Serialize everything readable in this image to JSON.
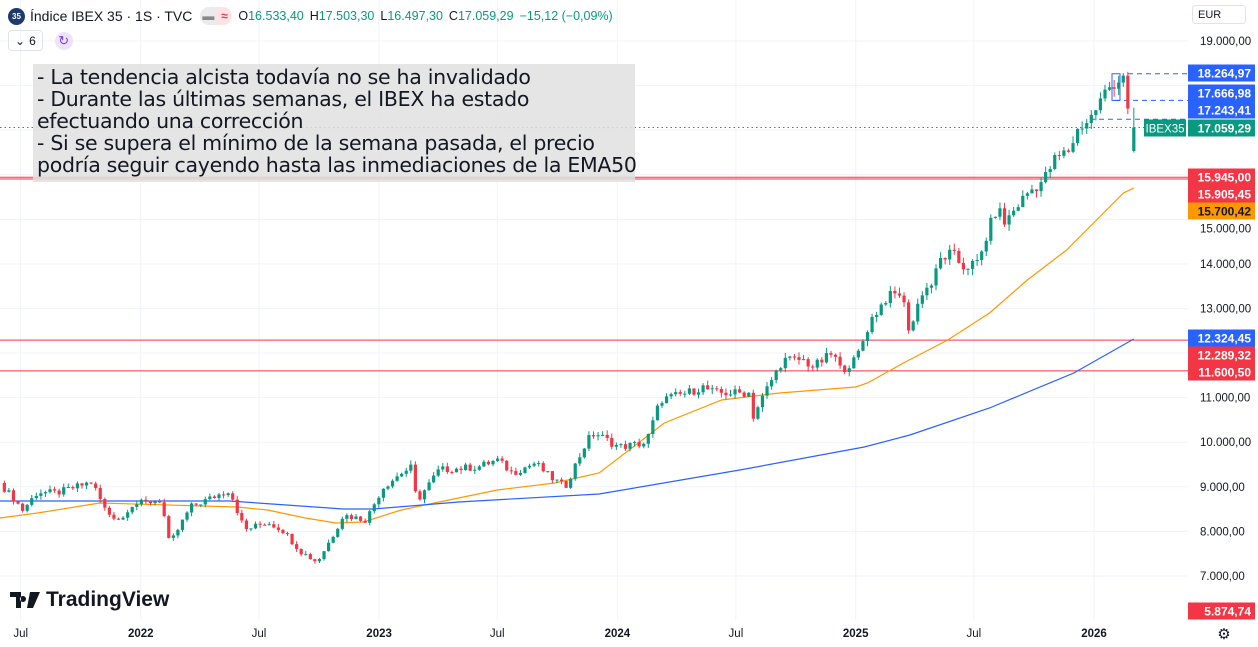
{
  "header": {
    "symbol_badge": "35",
    "title": "Índice IBEX 35 · 1S · TVC",
    "open_label": "O",
    "open": "16.533,40",
    "high_label": "H",
    "high": "17.503,30",
    "low_label": "L",
    "low": "16.497,30",
    "close_label": "C",
    "close": "17.059,29",
    "change": "−15,12 (−0,09%)",
    "indicators_count": "6",
    "currency": "EUR"
  },
  "annotation": {
    "lines": [
      "- La tendencia alcista todavía no se ha invalidado",
      "- Durante las últimas semanas, el IBEX ha estado",
      "efectuando una corrección",
      "- Si se supera el mínimo de la semana pasada, el precio",
      "podría seguir cayendo hasta las inmediaciones de la EMA50"
    ]
  },
  "branding": {
    "logo_text": "TradingView"
  },
  "colors": {
    "up": "#089981",
    "down": "#f23645",
    "ema50": "#ff9800",
    "ema200": "#2962ff",
    "level_line": "#f23645",
    "tag_blue": "#2962ff"
  },
  "chart_data": {
    "type": "candlestick",
    "interval": "1W",
    "ylim": [
      5600,
      19400
    ],
    "y_ticks": [
      "19.000,00",
      "15.000,00",
      "14.000,00",
      "13.000,00",
      "11.000,00",
      "10.000,00",
      "9.000,00",
      "8.000,00",
      "7.000,00"
    ],
    "y_tick_values": [
      19000,
      15000,
      14000,
      13000,
      11000,
      10000,
      9000,
      8000,
      7000
    ],
    "x_ticks": [
      {
        "label": "Jul",
        "date": "2021-07-01",
        "bold": false
      },
      {
        "label": "2022",
        "date": "2022-01-01",
        "bold": true
      },
      {
        "label": "Jul",
        "date": "2022-07-01",
        "bold": false
      },
      {
        "label": "2023",
        "date": "2023-01-01",
        "bold": true
      },
      {
        "label": "Jul",
        "date": "2023-07-01",
        "bold": false
      },
      {
        "label": "2024",
        "date": "2024-01-01",
        "bold": true
      },
      {
        "label": "Jul",
        "date": "2024-07-01",
        "bold": false
      },
      {
        "label": "2025",
        "date": "2025-01-01",
        "bold": true
      },
      {
        "label": "Jul",
        "date": "2025-07-01",
        "bold": false
      },
      {
        "label": "2026",
        "date": "2026-01-01",
        "bold": true
      }
    ],
    "grid": true,
    "close_path": [
      [
        "2021-05-30",
        9086
      ],
      [
        "2021-06-22",
        8705
      ],
      [
        "2021-07-04",
        8480
      ],
      [
        "2021-07-27",
        8884
      ],
      [
        "2021-08-25",
        8862
      ],
      [
        "2021-10-18",
        9108
      ],
      [
        "2021-11-10",
        8413
      ],
      [
        "2021-12-03",
        8256
      ],
      [
        "2021-12-15",
        8592
      ],
      [
        "2022-02-01",
        8705
      ],
      [
        "2022-02-14",
        7695
      ],
      [
        "2022-03-18",
        8548
      ],
      [
        "2022-05-17",
        8929
      ],
      [
        "2022-06-09",
        8032
      ],
      [
        "2022-07-14",
        8210
      ],
      [
        "2022-08-06",
        8032
      ],
      [
        "2022-09-04",
        7538
      ],
      [
        "2022-09-28",
        7314
      ],
      [
        "2022-10-21",
        7875
      ],
      [
        "2022-11-07",
        8368
      ],
      [
        "2022-12-12",
        8256
      ],
      [
        "2023-01-06",
        8974
      ],
      [
        "2023-02-04",
        9310
      ],
      [
        "2023-02-21",
        9445
      ],
      [
        "2023-02-27",
        8660
      ],
      [
        "2023-04-03",
        9378
      ],
      [
        "2023-06-01",
        9445
      ],
      [
        "2023-07-01",
        9602
      ],
      [
        "2023-07-24",
        9310
      ],
      [
        "2023-08-28",
        9535
      ],
      [
        "2023-09-20",
        9220
      ],
      [
        "2023-10-13",
        8996
      ],
      [
        "2023-10-25",
        9378
      ],
      [
        "2023-11-16",
        10050
      ],
      [
        "2023-11-28",
        10207
      ],
      [
        "2024-01-03",
        9893
      ],
      [
        "2024-02-14",
        9983
      ],
      [
        "2024-03-07",
        10948
      ],
      [
        "2024-04-17",
        11105
      ],
      [
        "2024-05-11",
        11239
      ],
      [
        "2024-05-29",
        11105
      ],
      [
        "2024-07-21",
        11105
      ],
      [
        "2024-07-27",
        10566
      ],
      [
        "2024-08-19",
        11239
      ],
      [
        "2024-09-11",
        11845
      ],
      [
        "2024-10-12",
        11845
      ],
      [
        "2024-10-28",
        11688
      ],
      [
        "2024-11-27",
        12002
      ],
      [
        "2024-12-09",
        11621
      ],
      [
        "2025-01-01",
        11845
      ],
      [
        "2025-01-24",
        12742
      ],
      [
        "2025-02-18",
        13258
      ],
      [
        "2025-03-12",
        13348
      ],
      [
        "2025-03-25",
        12450
      ],
      [
        "2025-04-11",
        13348
      ],
      [
        "2025-04-29",
        13572
      ],
      [
        "2025-05-10",
        14088
      ],
      [
        "2025-05-28",
        14245
      ],
      [
        "2025-06-14",
        13931
      ],
      [
        "2025-07-08",
        14020
      ],
      [
        "2025-07-25",
        14828
      ],
      [
        "2025-08-06",
        15277
      ],
      [
        "2025-08-17",
        14918
      ],
      [
        "2025-09-04",
        15277
      ],
      [
        "2025-09-21",
        15591
      ],
      [
        "2025-10-16",
        15882
      ],
      [
        "2025-11-01",
        16331
      ],
      [
        "2025-11-24",
        16555
      ],
      [
        "2025-12-09",
        17071
      ],
      [
        "2025-12-25",
        17228
      ],
      [
        "2026-01-09",
        17609
      ],
      [
        "2026-01-20",
        17901
      ],
      [
        "2026-02-01",
        18058
      ],
      [
        "2026-02-09",
        18125
      ],
      [
        "2026-02-16",
        18305
      ],
      [
        "2026-02-24",
        17071
      ]
    ],
    "last_candle": {
      "date": "2026-03-03",
      "open": 16533.4,
      "high": 17503.3,
      "low": 16497.3,
      "close": 17059.29
    },
    "series": [
      {
        "name": "EMA50",
        "color": "#ff9800",
        "points": [
          [
            "2021-05-30",
            8301
          ],
          [
            "2021-07-27",
            8413
          ],
          [
            "2021-10-30",
            8637
          ],
          [
            "2022-05-28",
            8548
          ],
          [
            "2022-07-14",
            8480
          ],
          [
            "2022-09-10",
            8301
          ],
          [
            "2022-10-27",
            8189
          ],
          [
            "2022-12-08",
            8211
          ],
          [
            "2023-02-04",
            8480
          ],
          [
            "2023-04-03",
            8660
          ],
          [
            "2023-07-01",
            8929
          ],
          [
            "2023-09-27",
            9086
          ],
          [
            "2023-12-04",
            9310
          ],
          [
            "2024-03-13",
            10432
          ],
          [
            "2024-06-09",
            10948
          ],
          [
            "2024-09-06",
            11105
          ],
          [
            "2025-01-01",
            11239
          ],
          [
            "2025-01-19",
            11329
          ],
          [
            "2025-03-18",
            11800
          ],
          [
            "2025-05-22",
            12293
          ],
          [
            "2025-07-25",
            12899
          ],
          [
            "2025-09-21",
            13639
          ],
          [
            "2025-11-20",
            14312
          ],
          [
            "2026-01-05",
            14985
          ],
          [
            "2026-02-15",
            15591
          ],
          [
            "2026-03-03",
            15700
          ]
        ]
      },
      {
        "name": "EMA200",
        "color": "#2962ff",
        "points": [
          [
            "2021-05-30",
            8682
          ],
          [
            "2022-05-17",
            8682
          ],
          [
            "2022-08-12",
            8592
          ],
          [
            "2022-11-07",
            8503
          ],
          [
            "2022-12-23",
            8503
          ],
          [
            "2023-05-03",
            8660
          ],
          [
            "2023-12-04",
            8839
          ],
          [
            "2024-07-08",
            9378
          ],
          [
            "2025-01-14",
            9893
          ],
          [
            "2025-03-25",
            10162
          ],
          [
            "2025-07-25",
            10768
          ],
          [
            "2025-12-01",
            11553
          ],
          [
            "2026-03-03",
            12316
          ]
        ]
      }
    ],
    "horizontal_levels": [
      15945.0,
      15905.45,
      12289.32,
      11600.5
    ],
    "dashed_levels": [
      18264.97,
      17666.98,
      17243.41
    ],
    "last_price": 17059.29,
    "price_tags": [
      {
        "text": "18.264,97",
        "value": 18264.97,
        "bg": "#2962ff",
        "fg": "#ffffff"
      },
      {
        "text": "17.666,98",
        "value": 17666.98,
        "bg": "#2962ff",
        "fg": "#ffffff"
      },
      {
        "text": "17.243,41",
        "value": 17243.41,
        "bg": "#2962ff",
        "fg": "#ffffff"
      },
      {
        "text": "17.059,29",
        "value": 17059.29,
        "bg": "#089981",
        "fg": "#ffffff",
        "symbol": "IBEX35"
      },
      {
        "text": "15.945,00",
        "value": 15945.0,
        "bg": "#f23645",
        "fg": "#ffffff"
      },
      {
        "text": "15.905,45",
        "value": 15905.45,
        "bg": "#f23645",
        "fg": "#ffffff"
      },
      {
        "text": "15.700,42",
        "value": 15700.42,
        "bg": "#ff9800",
        "fg": "#131722"
      },
      {
        "text": "12.324,45",
        "value": 12324.45,
        "bg": "#2962ff",
        "fg": "#ffffff"
      },
      {
        "text": "12.289,32",
        "value": 12289.32,
        "bg": "#f23645",
        "fg": "#ffffff"
      },
      {
        "text": "11.600,50",
        "value": 11600.5,
        "bg": "#f23645",
        "fg": "#ffffff"
      },
      {
        "text": "5.874,74",
        "value": 5874.74,
        "bg": "#f23645",
        "fg": "#ffffff"
      }
    ]
  }
}
